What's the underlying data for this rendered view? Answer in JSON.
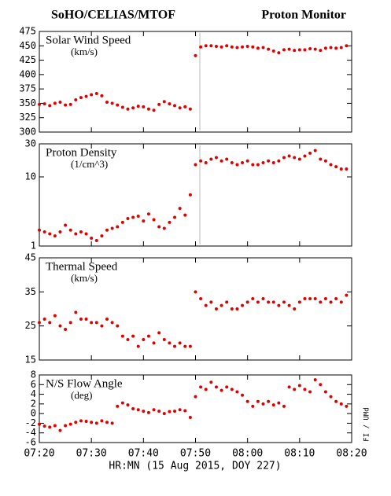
{
  "title_left": "SoHO/CELIAS/MTOF",
  "title_right": "Proton Monitor",
  "xlabel": "HR:MN (15 Aug 2015, DOY 227)",
  "credit": "FI / UMd",
  "chart_data": [
    {
      "type": "scatter",
      "title": "Solar Wind Speed",
      "unit": "(km/s)",
      "color": "#e00000",
      "x": [
        440,
        441,
        442,
        443,
        444,
        445,
        446,
        447,
        448,
        449,
        450,
        451,
        452,
        453,
        454,
        455,
        456,
        457,
        458,
        459,
        460,
        461,
        462,
        463,
        464,
        465,
        466,
        467,
        468,
        469,
        470,
        471,
        472,
        473,
        474,
        475,
        476,
        477,
        478,
        479,
        480,
        481,
        482,
        483,
        484,
        485,
        486,
        487,
        488,
        489,
        490,
        491,
        492,
        493,
        494,
        495,
        496,
        497,
        498,
        499
      ],
      "values": [
        348,
        349,
        346,
        350,
        352,
        347,
        348,
        356,
        360,
        362,
        365,
        367,
        363,
        352,
        350,
        347,
        343,
        340,
        342,
        345,
        344,
        340,
        338,
        348,
        353,
        349,
        346,
        342,
        344,
        340,
        433,
        448,
        450,
        450,
        449,
        448,
        450,
        448,
        447,
        448,
        449,
        448,
        446,
        447,
        444,
        441,
        438,
        443,
        444,
        442,
        443,
        443,
        445,
        444,
        442,
        446,
        447,
        446,
        447,
        450
      ],
      "xlim": [
        440,
        500
      ],
      "xticks": [
        440,
        450,
        460,
        470,
        480,
        490,
        500
      ],
      "ylim": [
        300,
        475
      ],
      "yticks": [
        300,
        325,
        350,
        375,
        400,
        425,
        450,
        475
      ]
    },
    {
      "type": "scatter",
      "title": "Proton Density",
      "unit": "(1/cm^3)",
      "color": "#e00000",
      "log_scale": true,
      "x": [
        440,
        441,
        442,
        443,
        444,
        445,
        446,
        447,
        448,
        449,
        450,
        451,
        452,
        453,
        454,
        455,
        456,
        457,
        458,
        459,
        460,
        461,
        462,
        463,
        464,
        465,
        466,
        467,
        468,
        469,
        470,
        471,
        472,
        473,
        474,
        475,
        476,
        477,
        478,
        479,
        480,
        481,
        482,
        483,
        484,
        485,
        486,
        487,
        488,
        489,
        490,
        491,
        492,
        493,
        494,
        495,
        496,
        497,
        498,
        499
      ],
      "values": [
        1.7,
        1.6,
        1.5,
        1.4,
        1.6,
        2.0,
        1.7,
        1.5,
        1.6,
        1.5,
        1.3,
        1.2,
        1.4,
        1.7,
        1.8,
        1.9,
        2.2,
        2.5,
        2.6,
        2.7,
        2.3,
        2.9,
        2.4,
        1.9,
        1.8,
        2.2,
        2.6,
        3.5,
        2.8,
        5.5,
        15,
        17,
        16,
        18,
        19,
        17,
        18,
        16,
        15,
        16,
        17,
        15,
        15,
        16,
        17,
        16,
        17,
        19,
        20,
        19,
        18,
        20,
        22,
        24,
        18,
        17,
        15,
        14,
        13,
        13
      ],
      "xlim": [
        440,
        500
      ],
      "xticks": [
        440,
        450,
        460,
        470,
        480,
        490,
        500
      ],
      "ylim": [
        1,
        30
      ],
      "yticks": [
        1,
        10,
        30
      ]
    },
    {
      "type": "scatter",
      "title": "Thermal Speed",
      "unit": "(km/s)",
      "color": "#e00000",
      "x": [
        440,
        441,
        442,
        443,
        444,
        445,
        446,
        447,
        448,
        449,
        450,
        451,
        452,
        453,
        454,
        455,
        456,
        457,
        458,
        459,
        460,
        461,
        462,
        463,
        464,
        465,
        466,
        467,
        468,
        469,
        470,
        471,
        472,
        473,
        474,
        475,
        476,
        477,
        478,
        479,
        480,
        481,
        482,
        483,
        484,
        485,
        486,
        487,
        488,
        489,
        490,
        491,
        492,
        493,
        494,
        495,
        496,
        497,
        498,
        499
      ],
      "values": [
        26,
        27,
        26,
        28,
        25,
        24,
        26,
        29,
        27,
        27,
        26,
        26,
        25,
        27,
        26,
        25,
        22,
        21,
        22,
        19,
        21,
        22,
        20,
        23,
        21,
        20,
        19,
        20,
        19,
        19,
        35,
        33,
        31,
        32,
        30,
        31,
        32,
        30,
        30,
        31,
        32,
        33,
        32,
        33,
        32,
        32,
        31,
        32,
        31,
        30,
        32,
        33,
        33,
        33,
        32,
        33,
        32,
        33,
        32,
        34
      ],
      "xlim": [
        440,
        500
      ],
      "xticks": [
        440,
        450,
        460,
        470,
        480,
        490,
        500
      ],
      "ylim": [
        15,
        45
      ],
      "yticks": [
        15,
        25,
        35,
        45
      ]
    },
    {
      "type": "scatter",
      "title": "N/S Flow Angle",
      "unit": "(deg)",
      "color": "#e00000",
      "x": [
        440,
        441,
        442,
        443,
        444,
        445,
        446,
        447,
        448,
        449,
        450,
        451,
        452,
        453,
        454,
        455,
        456,
        457,
        458,
        459,
        460,
        461,
        462,
        463,
        464,
        465,
        466,
        467,
        468,
        469,
        470,
        471,
        472,
        473,
        474,
        475,
        476,
        477,
        478,
        479,
        480,
        481,
        482,
        483,
        484,
        485,
        486,
        487,
        488,
        489,
        490,
        491,
        492,
        493,
        494,
        495,
        496,
        497,
        498,
        499
      ],
      "values": [
        -2.2,
        -2.6,
        -2.8,
        -2.5,
        -3.5,
        -2.5,
        -2.2,
        -1.8,
        -1.5,
        -1.6,
        -1.8,
        -2.0,
        -1.5,
        -1.8,
        -2.0,
        1.5,
        2.2,
        1.8,
        1.0,
        0.8,
        0.5,
        0.2,
        0.8,
        0.5,
        0.0,
        0.4,
        0.5,
        0.8,
        0.6,
        -0.8,
        3.5,
        5.5,
        5.0,
        6.5,
        5.5,
        4.8,
        5.5,
        5.0,
        4.5,
        3.8,
        2.5,
        1.5,
        2.5,
        2.0,
        2.5,
        1.8,
        2.2,
        1.5,
        5.5,
        5.0,
        5.8,
        5.0,
        4.5,
        7.0,
        6.0,
        4.5,
        3.5,
        2.5,
        2.0,
        1.5
      ],
      "xlim": [
        440,
        500
      ],
      "xticks": [
        {
          "value": 440,
          "label": "07:20"
        },
        {
          "value": 450,
          "label": "07:30"
        },
        {
          "value": 460,
          "label": "07:40"
        },
        {
          "value": 470,
          "label": "07:50"
        },
        {
          "value": 480,
          "label": "08:00"
        },
        {
          "value": 490,
          "label": "08:10"
        },
        {
          "value": 500,
          "label": "08:20"
        }
      ],
      "ylim": [
        -6,
        8
      ],
      "yticks": [
        -6,
        -4,
        -2,
        0,
        2,
        4,
        6,
        8
      ]
    }
  ]
}
